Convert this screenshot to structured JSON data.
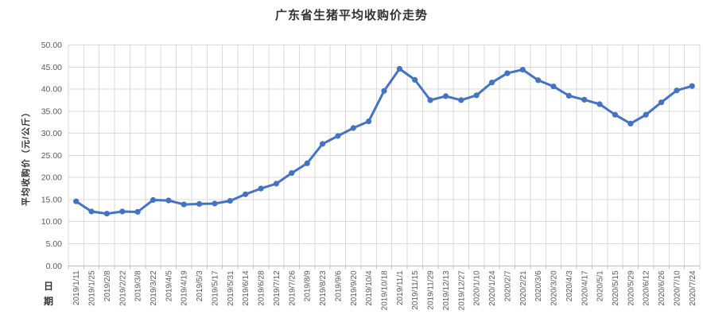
{
  "chart_data": {
    "type": "line",
    "title": "广东省生猪平均收购价走势",
    "xlabel": "日期",
    "ylabel": "平均收购价（元/公斤）",
    "ylim": [
      0,
      50
    ],
    "ytick_step": 5,
    "yticks": [
      "0.00",
      "5.00",
      "10.00",
      "15.00",
      "20.00",
      "25.00",
      "30.00",
      "35.00",
      "40.00",
      "45.00",
      "50.00"
    ],
    "grid": true,
    "legend_position": "none",
    "categories": [
      "2019/1/11",
      "2019/1/25",
      "2019/2/8",
      "2019/2/22",
      "2019/3/8",
      "2019/3/22",
      "2019/4/5",
      "2019/4/19",
      "2019/5/3",
      "2019/5/17",
      "2019/5/31",
      "2019/6/14",
      "2019/6/28",
      "2019/7/12",
      "2019/7/26",
      "2019/8/9",
      "2019/8/23",
      "2019/9/6",
      "2019/9/20",
      "2019/10/4",
      "2019/10/18",
      "2019/11/1",
      "2019/11/15",
      "2019/11/29",
      "2019/12/13",
      "2019/12/27",
      "2020/1/10",
      "2020/1/24",
      "2020/2/7",
      "2020/2/21",
      "2020/3/6",
      "2020/3/20",
      "2020/4/3",
      "2020/4/17",
      "2020/5/1",
      "2020/5/15",
      "2020/5/29",
      "2020/6/12",
      "2020/6/26",
      "2020/7/10",
      "2020/7/24"
    ],
    "series": [
      {
        "name": "平均收购价",
        "values": [
          14.6,
          12.3,
          11.8,
          12.3,
          12.2,
          14.9,
          14.8,
          13.9,
          14.0,
          14.1,
          14.7,
          16.2,
          17.5,
          18.6,
          21.0,
          23.2,
          27.6,
          29.4,
          31.2,
          32.7,
          39.6,
          44.6,
          42.1,
          37.5,
          38.4,
          37.5,
          38.6,
          41.5,
          43.6,
          44.4,
          42.0,
          40.6,
          38.5,
          37.6,
          36.6,
          34.2,
          32.2,
          34.2,
          37.0,
          39.7,
          40.7
        ]
      }
    ],
    "colors": {
      "line": "#4472C4",
      "marker": "#4472C4",
      "gridline": "#D9D9D9",
      "axis_line": "#BFBFBF",
      "tick_label": "#595959",
      "title_text": "#333333"
    }
  }
}
